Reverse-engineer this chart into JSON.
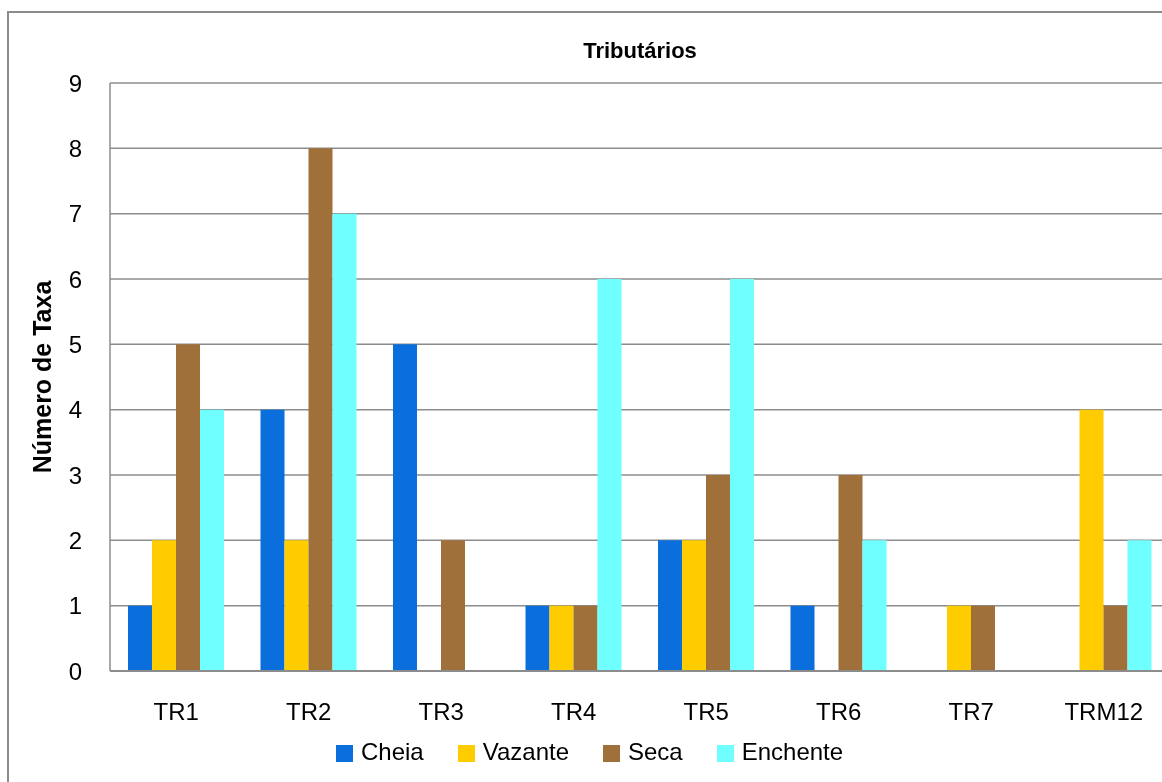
{
  "chart_data": {
    "type": "bar",
    "title": "Tributários",
    "ylabel": "Número de Taxa",
    "categories": [
      "TR1",
      "TR2",
      "TR3",
      "TR4",
      "TR5",
      "TR6",
      "TR7",
      "TRM12"
    ],
    "series": [
      {
        "name": "Cheia",
        "color": "#0a6fdc",
        "values": [
          1,
          4,
          5,
          1,
          2,
          1,
          0,
          0
        ]
      },
      {
        "name": "Vazante",
        "color": "#ffcc00",
        "values": [
          2,
          2,
          0,
          1,
          2,
          0,
          1,
          4
        ]
      },
      {
        "name": "Seca",
        "color": "#a0703a",
        "values": [
          5,
          8,
          2,
          1,
          3,
          3,
          1,
          1
        ]
      },
      {
        "name": "Enchente",
        "color": "#6fffff",
        "values": [
          4,
          7,
          0,
          6,
          6,
          2,
          0,
          2
        ]
      }
    ],
    "ylim": [
      0,
      9
    ],
    "yticks": [
      0,
      1,
      2,
      3,
      4,
      5,
      6,
      7,
      8,
      9
    ],
    "grid": "y",
    "legend": "bottom"
  }
}
